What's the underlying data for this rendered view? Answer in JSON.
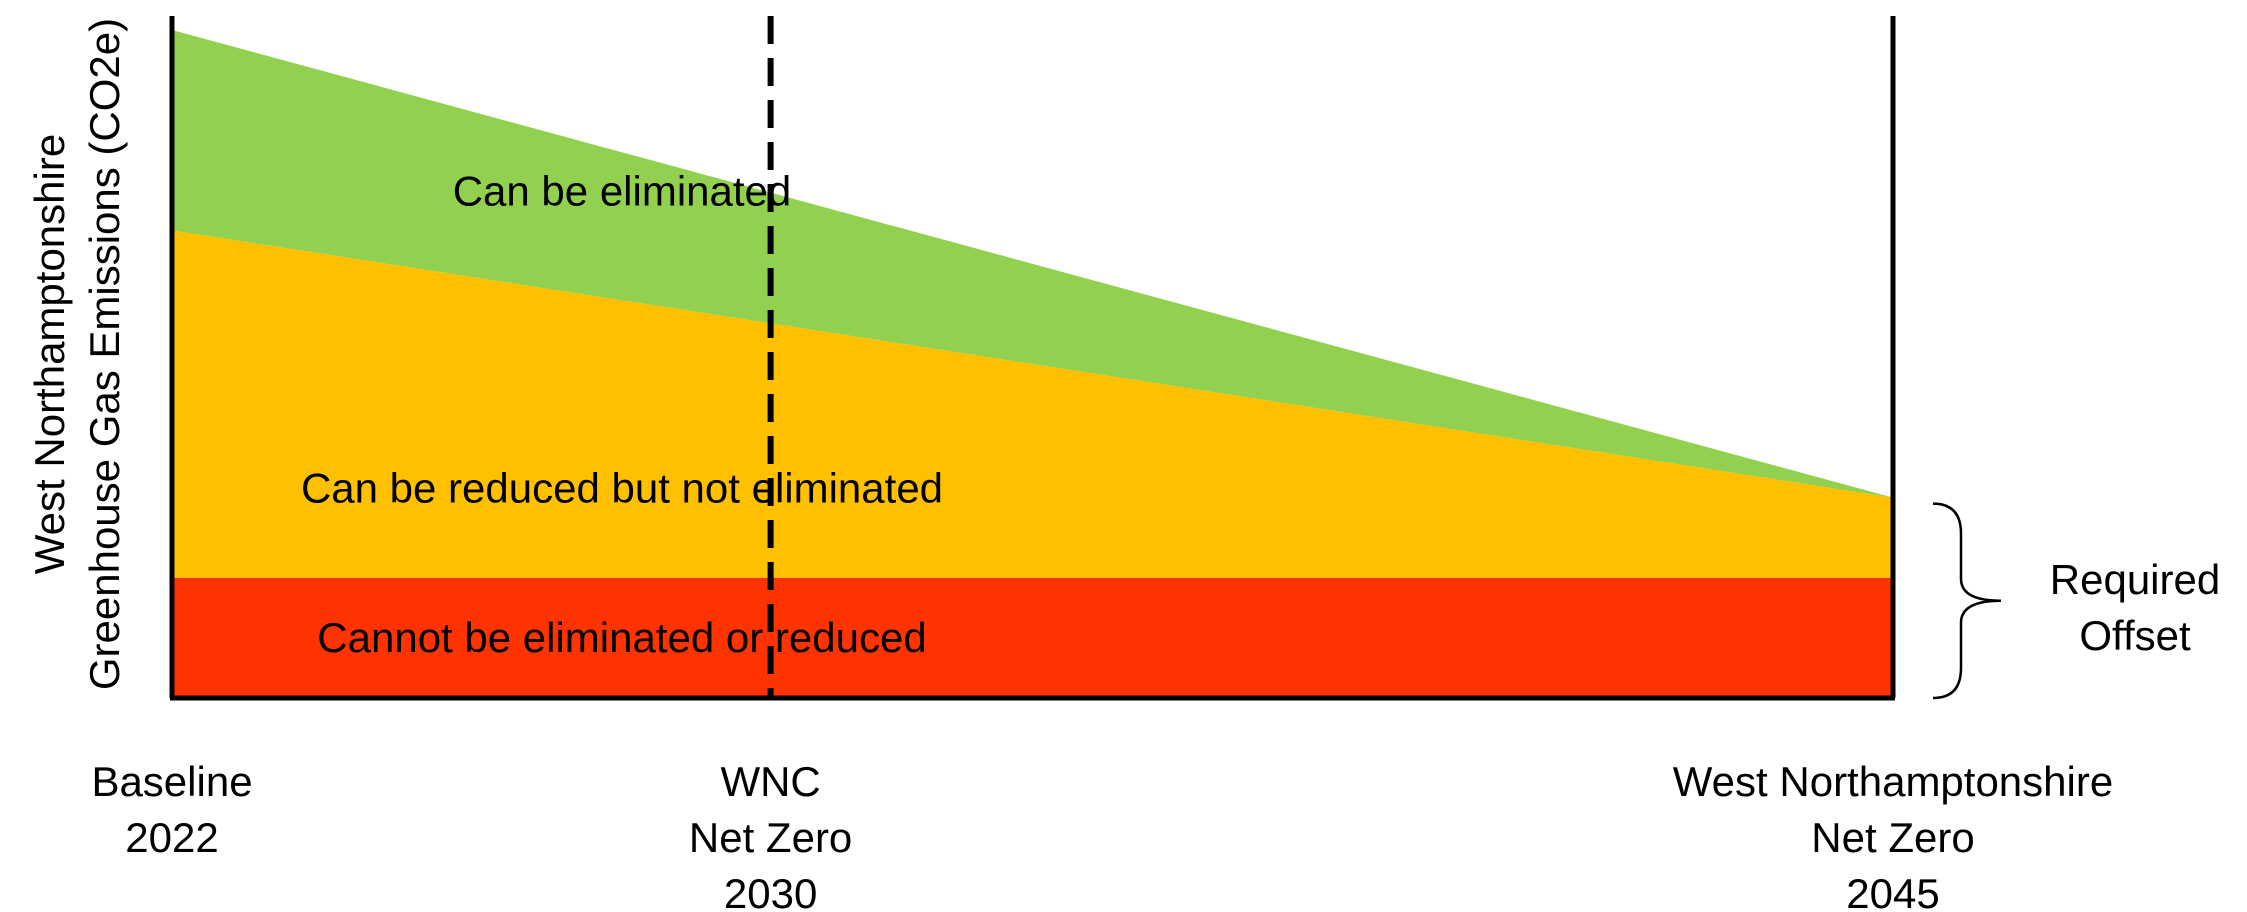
{
  "chart_data": {
    "type": "area",
    "title": "",
    "ylabel_lines": [
      "West Northamptonshire",
      "Greenhouse Gas Emissions (CO2e)"
    ],
    "xlabel": "",
    "x_ticks": [
      {
        "x": 2022,
        "lines": [
          "Baseline",
          "2022"
        ]
      },
      {
        "x": 2030,
        "lines": [
          "WNC",
          "Net Zero",
          "2030"
        ]
      },
      {
        "x": 2045,
        "lines": [
          "West Northamptonshire",
          "Net Zero",
          "2045"
        ]
      }
    ],
    "xlim": [
      2022,
      2045
    ],
    "ylim": [
      0,
      100
    ],
    "grid": false,
    "legend": "none",
    "x": [
      2022,
      2045
    ],
    "series": [
      {
        "name": "Cannot be eliminated or reduced",
        "values": [
          18,
          18
        ],
        "color": "#ff3300"
      },
      {
        "name": "Can be reduced but not eliminated",
        "values": [
          52,
          12
        ],
        "color": "#ffc000"
      },
      {
        "name": "Can be eliminated",
        "values": [
          30,
          0
        ],
        "color": "#92d050"
      }
    ],
    "reference_line": {
      "x": 2030,
      "style": "dashed"
    },
    "annotation": {
      "text_lines": [
        "Required",
        "Offset"
      ],
      "y_range": [
        0,
        30
      ],
      "marker": "brace"
    }
  }
}
